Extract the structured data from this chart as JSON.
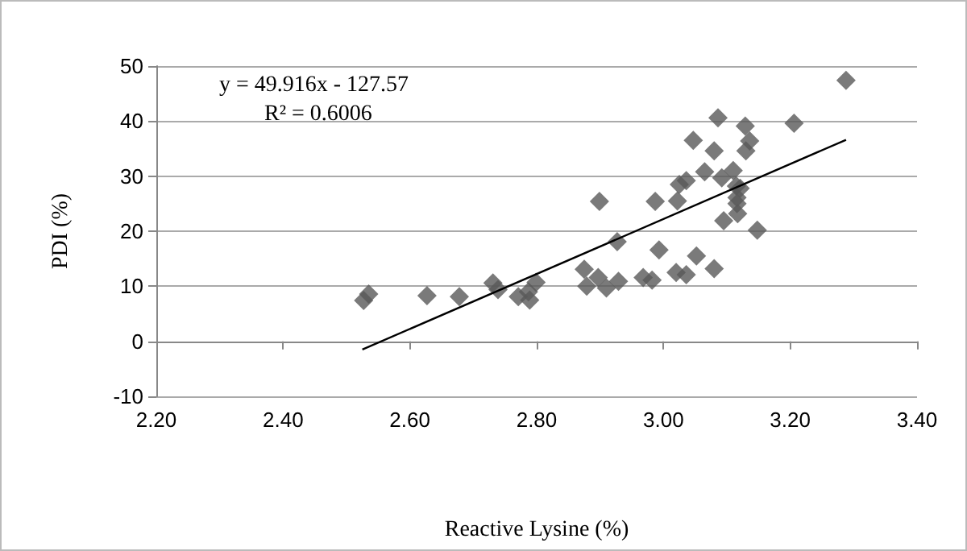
{
  "chart_data": {
    "type": "scatter",
    "xlabel": "Reactive Lysine (%)",
    "ylabel": "PDI (%)",
    "annotations": [
      "y = 49.916x - 127.57",
      "R² = 0.6006"
    ],
    "xlim": [
      2.2,
      3.4
    ],
    "xticks": [
      {
        "value": 2.2,
        "label": "2.20"
      },
      {
        "value": 2.4,
        "label": "2.40"
      },
      {
        "value": 2.6,
        "label": "2.60"
      },
      {
        "value": 2.8,
        "label": "2.80"
      },
      {
        "value": 3.0,
        "label": "3.00"
      },
      {
        "value": 3.2,
        "label": "3.20"
      },
      {
        "value": 3.4,
        "label": "3.40"
      }
    ],
    "ylim": [
      -10,
      50
    ],
    "yticks": [
      -10,
      0,
      10,
      20,
      30,
      40,
      50
    ],
    "grid": "y",
    "marker": "diamond",
    "series": [
      {
        "color": "#595959",
        "x": [
          2.527,
          2.535,
          2.627,
          2.678,
          2.731,
          2.739,
          2.771,
          2.787,
          2.789,
          2.799,
          2.875,
          2.879,
          2.897,
          2.899,
          2.91,
          2.929,
          2.927,
          2.968,
          2.982,
          2.987,
          2.993,
          3.02,
          3.022,
          3.025,
          3.036,
          3.036,
          3.047,
          3.052,
          3.065,
          3.08,
          3.08,
          3.086,
          3.092,
          3.095,
          3.11,
          3.115,
          3.116,
          3.116,
          3.117,
          3.121,
          3.129,
          3.13,
          3.136,
          3.148,
          3.206,
          3.288
        ],
        "values": [
          7.4,
          8.6,
          8.3,
          8.1,
          10.6,
          9.4,
          8.1,
          9.0,
          7.5,
          10.7,
          13.1,
          10.0,
          11.6,
          25.4,
          9.7,
          10.9,
          18.1,
          11.6,
          11.1,
          25.4,
          16.6,
          12.5,
          25.5,
          28.5,
          29.2,
          12.1,
          36.5,
          15.5,
          30.8,
          34.6,
          13.2,
          40.6,
          29.7,
          21.9,
          31.0,
          28.2,
          26.1,
          25.0,
          23.2,
          27.8,
          39.1,
          34.6,
          36.4,
          20.2,
          39.6,
          47.4
        ]
      },
      {
        "type": "line",
        "color": "#000000",
        "marker": "none",
        "x": [
          2.525,
          3.288
        ],
        "values": [
          -1.5,
          36.6
        ]
      }
    ]
  }
}
